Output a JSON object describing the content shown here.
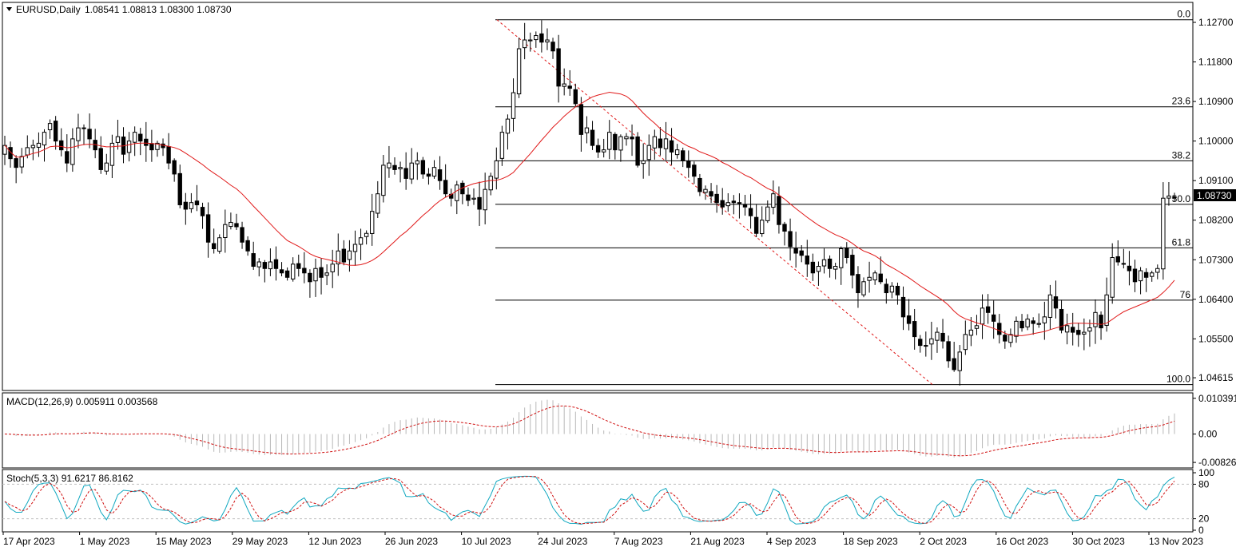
{
  "header": {
    "symbol_label": "EURUSD,Daily",
    "ohlc": "1.08541 1.08813 1.08300 1.08730"
  },
  "macd": {
    "label": "MACD(12,26,9) 0.005911 0.003568"
  },
  "stoch": {
    "label": "Stoch(5,3,3) 91.6217 86.8162"
  },
  "colors": {
    "ma": "#e01818",
    "signal": "#d01010",
    "stoch_main": "#10a8c0",
    "grid": "#000000"
  },
  "chart_data": [
    {
      "type": "candlestick",
      "title": "EURUSD,Daily",
      "price_ticks": [
        "1.12700",
        "1.11800",
        "1.10900",
        "1.10000",
        "1.09100",
        "1.08200",
        "1.07300",
        "1.06400",
        "1.05500",
        "1.04615"
      ],
      "current_price": "1.08730",
      "date_ticks": [
        "17 Apr 2023",
        "1 May 2023",
        "15 May 2023",
        "29 May 2023",
        "12 Jun 2023",
        "26 Jun 2023",
        "10 Jul 2023",
        "24 Jul 2023",
        "7 Aug 2023",
        "21 Aug 2023",
        "4 Sep 2023",
        "18 Sep 2023",
        "2 Oct 2023",
        "16 Oct 2023",
        "30 Oct 2023",
        "13 Nov 2023"
      ],
      "fib_levels": [
        {
          "label": "0.0",
          "price": 1.1276
        },
        {
          "label": "23.6",
          "price": 1.1078
        },
        {
          "label": "38.2",
          "price": 1.0955
        },
        {
          "label": "50.0",
          "price": 1.0856
        },
        {
          "label": "61.8",
          "price": 1.0757
        },
        {
          "label": "76",
          "price": 1.0638
        },
        {
          "label": "100.0",
          "price": 1.0446
        }
      ],
      "ylim": [
        1.0438,
        1.131
      ],
      "series": [
        {
          "name": "EURUSD",
          "closes": [
            1.099,
            1.096,
            1.094,
            1.0965,
            1.0985,
            1.099,
            1.0995,
            1.102,
            1.104,
            1.1,
            1.098,
            1.095,
            1.1005,
            1.103,
            1.103,
            1.1005,
            1.098,
            1.0935,
            1.095,
            1.0995,
            1.101,
            1.097,
            1.1,
            1.102,
            1.1,
            1.099,
            1.098,
            1.0995,
            1.0985,
            1.095,
            1.0925,
            1.0855,
            1.0845,
            1.086,
            1.0855,
            1.083,
            1.077,
            1.0755,
            1.078,
            1.081,
            1.0815,
            1.0805,
            1.077,
            1.075,
            1.0715,
            1.0725,
            1.071,
            1.0725,
            1.071,
            1.07,
            1.069,
            1.072,
            1.071,
            1.07,
            1.068,
            1.071,
            1.069,
            1.07,
            1.072,
            1.075,
            1.0725,
            1.075,
            1.0765,
            1.078,
            1.079,
            1.084,
            1.088,
            1.0945,
            1.095,
            1.0935,
            1.094,
            1.0915,
            1.095,
            1.0955,
            1.0925,
            1.092,
            1.094,
            1.091,
            1.088,
            1.087,
            1.09,
            1.088,
            1.0865,
            1.087,
            1.0845,
            1.089,
            1.092,
            1.0955,
            1.102,
            1.105,
            1.111,
            1.121,
            1.123,
            1.123,
            1.124,
            1.1225,
            1.123,
            1.1205,
            1.1125,
            1.113,
            1.112,
            1.1085,
            1.1015,
            1.103,
            1.099,
            1.0975,
            1.098,
            1.102,
            1.098,
            1.101,
            1.101,
            1.1005,
            1.0945,
            1.0955,
            1.099,
            1.101,
            1.0985,
            1.1005,
            1.0975,
            1.098,
            1.0955,
            1.094,
            1.092,
            1.0885,
            1.089,
            1.0875,
            1.086,
            1.085,
            1.086,
            1.086,
            1.086,
            1.085,
            1.083,
            1.079,
            1.082,
            1.085,
            1.088,
            1.081,
            1.0795,
            1.076,
            1.0745,
            1.074,
            1.072,
            1.07,
            1.0715,
            1.073,
            1.071,
            1.0715,
            1.0755,
            1.0735,
            1.0695,
            1.0655,
            1.068,
            1.069,
            1.07,
            1.068,
            1.0655,
            1.067,
            1.065,
            1.06,
            1.0585,
            1.0555,
            1.0535,
            1.0535,
            1.055,
            1.0565,
            1.0545,
            1.05,
            1.048,
            1.052,
            1.056,
            1.057,
            1.058,
            1.062,
            1.061,
            1.059,
            1.056,
            1.0545,
            1.056,
            1.059,
            1.0575,
            1.0595,
            1.0585,
            1.0585,
            1.06,
            1.065,
            1.062,
            1.057,
            1.058,
            1.0565,
            1.056,
            1.0565,
            1.0575,
            1.061,
            1.0575,
            1.065,
            1.0735,
            1.0725,
            1.072,
            1.0705,
            1.068,
            1.0705,
            1.069,
            1.07,
            1.071,
            1.087,
            1.0875,
            1.0873
          ]
        },
        {
          "name": "MA",
          "values": []
        }
      ]
    },
    {
      "type": "macd",
      "title": "MACD(12,26,9) 0.005911 0.003568",
      "yticks": [
        "0.010391",
        "0.00",
        "-0.008262"
      ],
      "ylim": [
        -0.0094,
        0.0115
      ]
    },
    {
      "type": "stochastic",
      "title": "Stoch(5,3,3) 91.6217 86.8162",
      "yticks": [
        "100",
        "80",
        "20",
        "0"
      ],
      "ylim": [
        0,
        100
      ]
    }
  ]
}
